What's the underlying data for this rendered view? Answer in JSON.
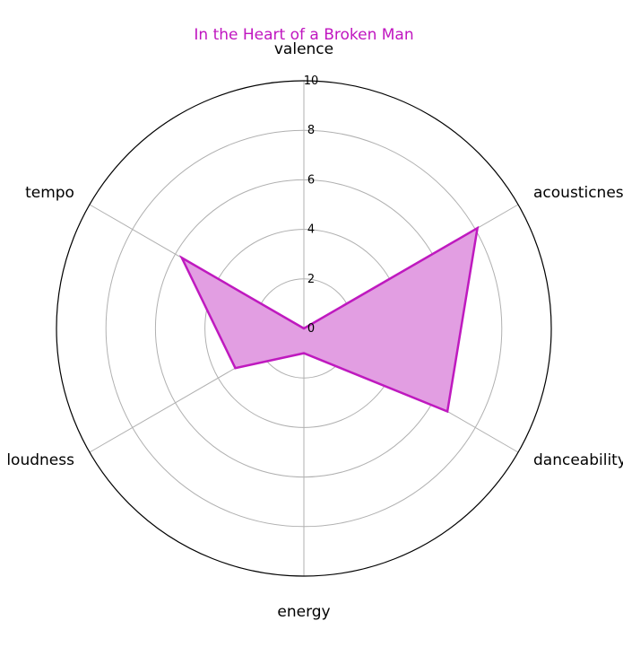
{
  "chart_data": {
    "type": "radar",
    "title": "In the Heart of a Broken Man",
    "axes": [
      "valence",
      "acousticness",
      "danceability",
      "energy",
      "loudness",
      "tempo"
    ],
    "series": [
      {
        "values": [
          0.0,
          8.1,
          6.7,
          1.0,
          3.2,
          5.7
        ]
      }
    ],
    "rlim": [
      0,
      10
    ],
    "r_ticks": [
      "0",
      "2",
      "4",
      "6",
      "8",
      "10"
    ],
    "grid": true,
    "colors": {
      "title": "#c016c0",
      "series_line": "#bf19bf",
      "series_fill": "#e29ee2",
      "grid": "#b0b0b0",
      "frame": "#000000"
    }
  }
}
